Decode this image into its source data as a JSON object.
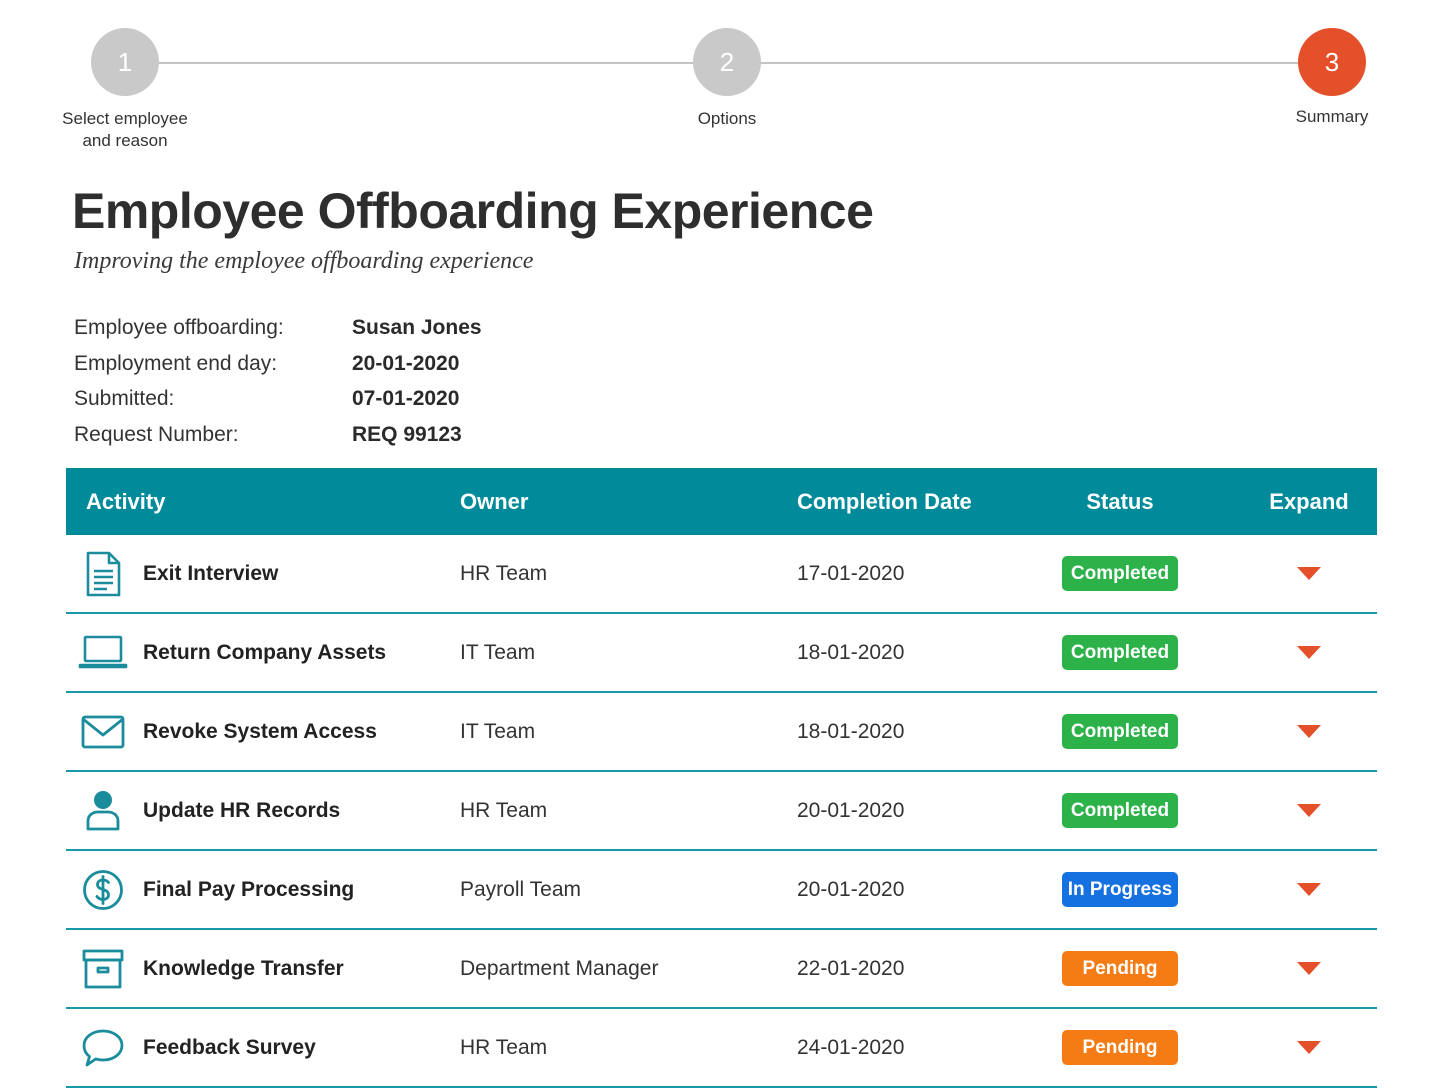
{
  "stepper": {
    "steps": [
      {
        "number": "1",
        "label": "Select employee\nand reason",
        "active": false
      },
      {
        "number": "2",
        "label": "Options",
        "active": false
      },
      {
        "number": "3",
        "label": "Summary",
        "active": true
      }
    ]
  },
  "header": {
    "title": "Employee Offboarding Experience",
    "subtitle": "Improving the employee offboarding experience"
  },
  "summary": [
    {
      "label": "Employee offboarding:",
      "value": "Susan Jones"
    },
    {
      "label": "Employment end day:",
      "value": "20-01-2020"
    },
    {
      "label": "Submitted:",
      "value": "07-01-2020"
    },
    {
      "label": "Request Number:",
      "value": "REQ 99123"
    }
  ],
  "table": {
    "headers": {
      "activity": "Activity",
      "owner": "Owner",
      "date": "Completion Date",
      "status": "Status",
      "expand": "Expand"
    },
    "rows": [
      {
        "icon": "document-icon",
        "activity": "Exit Interview",
        "owner": "HR Team",
        "date": "17-01-2020",
        "status": "Completed",
        "status_color": "#2db24a"
      },
      {
        "icon": "laptop-icon",
        "activity": "Return Company Assets",
        "owner": "IT Team",
        "date": "18-01-2020",
        "status": "Completed",
        "status_color": "#2db24a"
      },
      {
        "icon": "envelope-icon",
        "activity": "Revoke System Access",
        "owner": "IT Team",
        "date": "18-01-2020",
        "status": "Completed",
        "status_color": "#2db24a"
      },
      {
        "icon": "person-icon",
        "activity": "Update HR Records",
        "owner": "HR Team",
        "date": "20-01-2020",
        "status": "Completed",
        "status_color": "#2db24a"
      },
      {
        "icon": "dollar-icon",
        "activity": "Final Pay Processing",
        "owner": "Payroll Team",
        "date": "20-01-2020",
        "status": "In Progress",
        "status_color": "#1570e0"
      },
      {
        "icon": "archive-box-icon",
        "activity": "Knowledge Transfer",
        "owner": "Department Manager",
        "date": "22-01-2020",
        "status": "Pending",
        "status_color": "#f57c14"
      },
      {
        "icon": "chat-bubble-icon",
        "activity": "Feedback Survey",
        "owner": "HR Team",
        "date": "24-01-2020",
        "status": "Pending",
        "status_color": "#f57c14"
      }
    ]
  },
  "colors": {
    "accent": "#e4502a",
    "header_teal": "#008a9a",
    "icon_teal": "#1a8c9c",
    "step_inactive": "#c9c9c9"
  }
}
